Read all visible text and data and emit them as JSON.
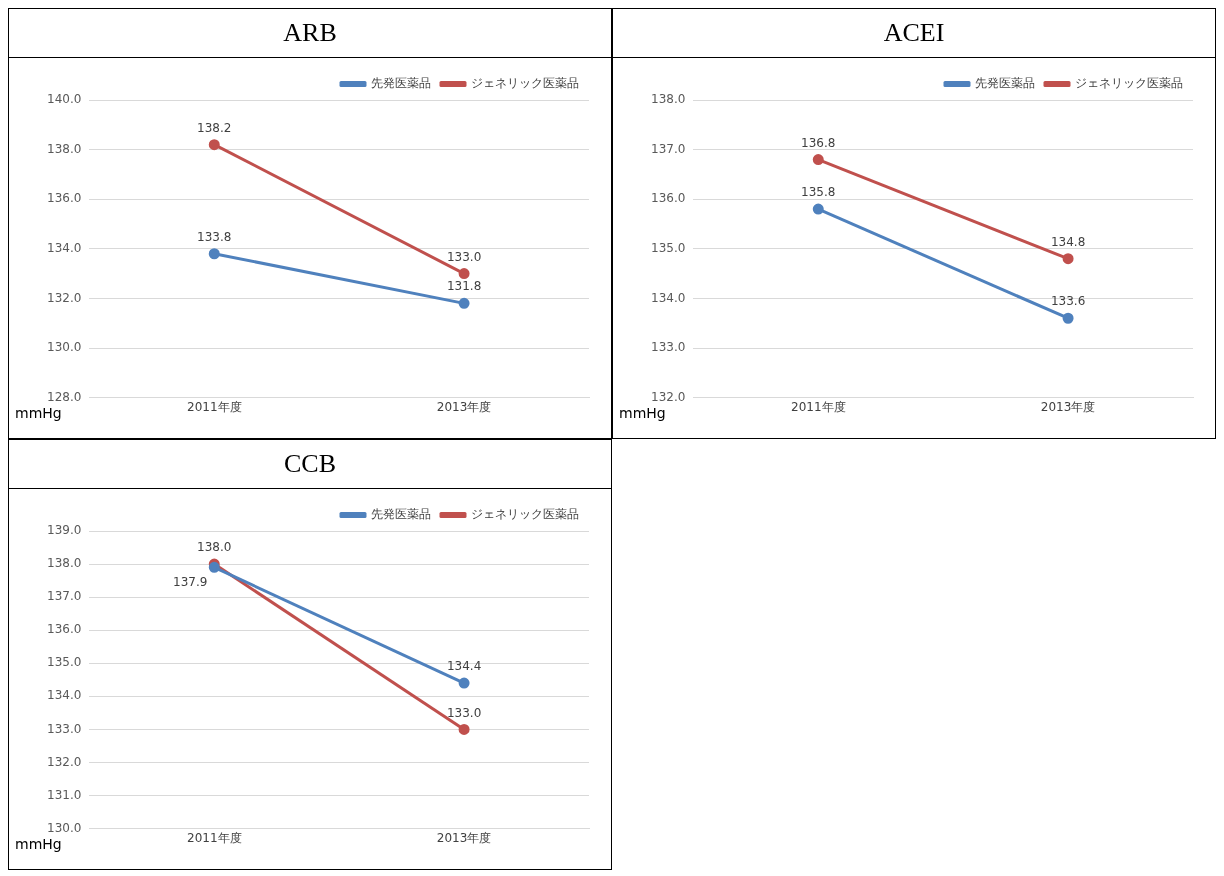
{
  "chart_data": [
    {
      "type": "line",
      "title": "ARB",
      "categories": [
        "2011年度",
        "2013年度"
      ],
      "ylabel": "mmHg",
      "ylim": [
        128,
        140
      ],
      "yticks": [
        {
          "value": 128,
          "label": "128.0"
        },
        {
          "value": 130,
          "label": "130.0"
        },
        {
          "value": 132,
          "label": "132.0"
        },
        {
          "value": 134,
          "label": "134.0"
        },
        {
          "value": 136,
          "label": "136.0"
        },
        {
          "value": 138,
          "label": "138.0"
        },
        {
          "value": 140,
          "label": "140.0"
        }
      ],
      "grid": "y",
      "legend": "top right",
      "marker": "circle",
      "series": [
        {
          "name": "先発医薬品",
          "color": "#4f81bd",
          "values": [
            133.8,
            131.8
          ],
          "value_labels": [
            "133.8",
            "131.8"
          ]
        },
        {
          "name": "ジェネリック医薬品",
          "color": "#c0504d",
          "values": [
            138.2,
            133.0
          ],
          "value_labels": [
            "138.2",
            "133.0"
          ]
        }
      ]
    },
    {
      "type": "line",
      "title": "ACEI",
      "categories": [
        "2011年度",
        "2013年度"
      ],
      "ylabel": "mmHg",
      "ylim": [
        132,
        138
      ],
      "yticks": [
        {
          "value": 132,
          "label": "132.0"
        },
        {
          "value": 133,
          "label": "133.0"
        },
        {
          "value": 134,
          "label": "134.0"
        },
        {
          "value": 135,
          "label": "135.0"
        },
        {
          "value": 136,
          "label": "136.0"
        },
        {
          "value": 137,
          "label": "137.0"
        },
        {
          "value": 138,
          "label": "138.0"
        }
      ],
      "grid": "y",
      "legend": "top right",
      "marker": "circle",
      "series": [
        {
          "name": "先発医薬品",
          "color": "#4f81bd",
          "values": [
            135.8,
            133.6
          ],
          "value_labels": [
            "135.8",
            "133.6"
          ]
        },
        {
          "name": "ジェネリック医薬品",
          "color": "#c0504d",
          "values": [
            136.8,
            134.8
          ],
          "value_labels": [
            "136.8",
            "134.8"
          ]
        }
      ]
    },
    {
      "type": "line",
      "title": "CCB",
      "categories": [
        "2011年度",
        "2013年度"
      ],
      "ylabel": "mmHg",
      "ylim": [
        130,
        139
      ],
      "yticks": [
        {
          "value": 130,
          "label": "130.0"
        },
        {
          "value": 131,
          "label": "131.0"
        },
        {
          "value": 132,
          "label": "132.0"
        },
        {
          "value": 133,
          "label": "133.0"
        },
        {
          "value": 134,
          "label": "134.0"
        },
        {
          "value": 135,
          "label": "135.0"
        },
        {
          "value": 136,
          "label": "136.0"
        },
        {
          "value": 137,
          "label": "137.0"
        },
        {
          "value": 138,
          "label": "138.0"
        },
        {
          "value": 139,
          "label": "139.0"
        }
      ],
      "grid": "y",
      "legend": "top right",
      "marker": "circle",
      "series": [
        {
          "name": "先発医薬品",
          "color": "#4f81bd",
          "values": [
            137.9,
            134.4
          ],
          "value_labels": [
            "137.9",
            "134.4"
          ]
        },
        {
          "name": "ジェネリック医薬品",
          "color": "#c0504d",
          "values": [
            138.0,
            133.0
          ],
          "value_labels": [
            "138.0",
            "133.0"
          ]
        }
      ]
    }
  ]
}
